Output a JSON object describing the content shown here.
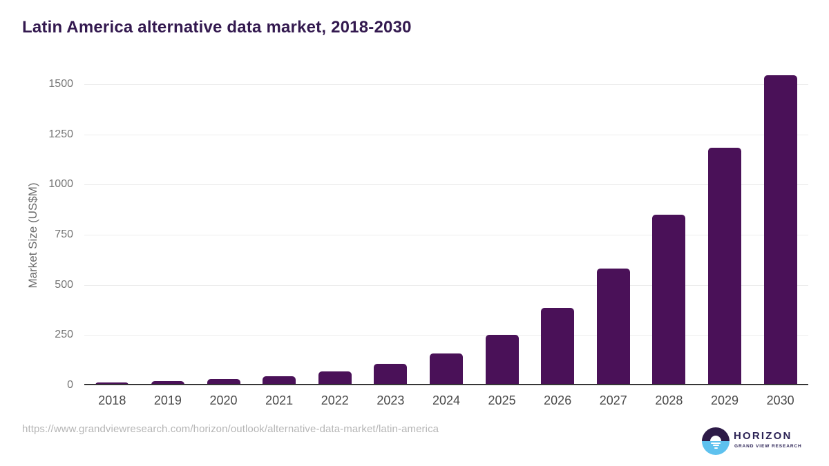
{
  "title": "Latin America alternative data market, 2018-2030",
  "chart_data": {
    "type": "bar",
    "categories": [
      "2018",
      "2019",
      "2020",
      "2021",
      "2022",
      "2023",
      "2024",
      "2025",
      "2026",
      "2027",
      "2028",
      "2029",
      "2030"
    ],
    "values": [
      13,
      22,
      32,
      45,
      68,
      105,
      160,
      250,
      385,
      580,
      850,
      1185,
      1545
    ],
    "title": "Latin America alternative data market, 2018-2030",
    "xlabel": "",
    "ylabel": "Market Size (US$M)",
    "ylim": [
      0,
      1500
    ],
    "yticks": [
      0,
      250,
      500,
      750,
      1000,
      1250,
      1500
    ],
    "grid": true,
    "legend": "none",
    "bar_color": "#4A1158"
  },
  "footer": {
    "source_url": "https://www.grandviewresearch.com/horizon/outlook/alternative-data-market/latin-america"
  },
  "logo": {
    "name": "HORIZON",
    "subtitle": "GRAND VIEW RESEARCH"
  },
  "colors": {
    "bar": "#4A1158",
    "title_text": "#33194f",
    "logo_purple": "#2d1a47",
    "logo_blue": "#5ec1ee",
    "gridline": "#ececec",
    "axis_line": "#363636"
  }
}
